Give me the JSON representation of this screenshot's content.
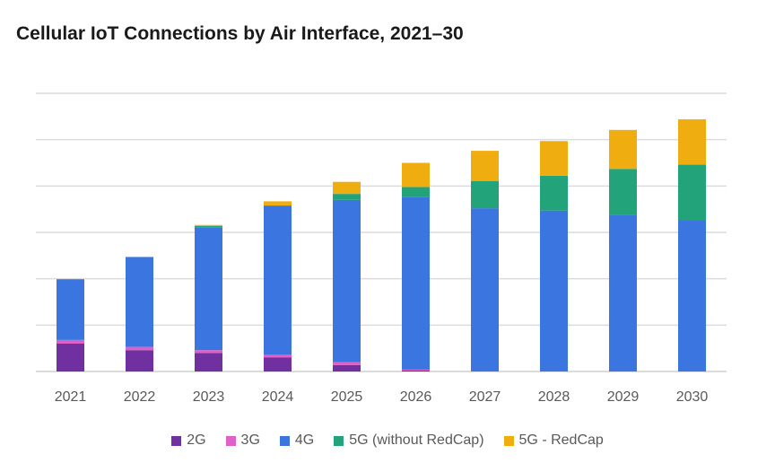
{
  "chart_data": {
    "type": "bar",
    "stacked": true,
    "title": "Cellular IoT Connections by Air Interface, 2021–30",
    "xlabel": "",
    "ylabel": "",
    "ylim": [
      0,
      6
    ],
    "y_ticks_shown": false,
    "grid": true,
    "legend_position": "bottom",
    "categories": [
      "2021",
      "2022",
      "2023",
      "2024",
      "2025",
      "2026",
      "2027",
      "2028",
      "2029",
      "2030"
    ],
    "series": [
      {
        "name": "2G",
        "color": "#7030a0",
        "values": [
          0.6,
          0.46,
          0.4,
          0.3,
          0.14,
          0.02,
          0,
          0,
          0,
          0
        ]
      },
      {
        "name": "3G",
        "color": "#e060c8",
        "values": [
          0.08,
          0.07,
          0.06,
          0.06,
          0.06,
          0.02,
          0,
          0,
          0,
          0
        ]
      },
      {
        "name": "4G",
        "color": "#3b75e0",
        "values": [
          1.31,
          1.94,
          2.65,
          3.21,
          3.5,
          3.73,
          3.52,
          3.47,
          3.38,
          3.27
        ]
      },
      {
        "name": "5G (without RedCap)",
        "color": "#22a37a",
        "values": [
          0,
          0,
          0.03,
          0.01,
          0.13,
          0.21,
          0.59,
          0.75,
          0.99,
          1.19
        ]
      },
      {
        "name": "5G - RedCap",
        "color": "#f0ad10",
        "values": [
          0,
          0,
          0.02,
          0.09,
          0.26,
          0.52,
          0.65,
          0.75,
          0.84,
          0.98
        ]
      }
    ]
  }
}
